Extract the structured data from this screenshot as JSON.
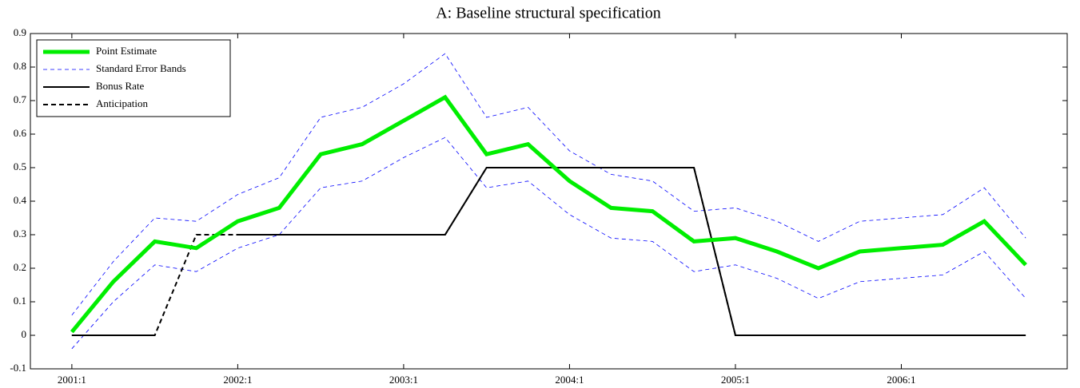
{
  "chart_data": {
    "type": "line",
    "title": "A: Baseline structural specification",
    "x": [
      1,
      2,
      3,
      4,
      5,
      6,
      7,
      8,
      9,
      10,
      11,
      12,
      13,
      14,
      15,
      16,
      17,
      18,
      19,
      20,
      21,
      22,
      23,
      24
    ],
    "xlim": [
      0,
      25
    ],
    "xticks": [
      {
        "value": 1,
        "label": "2001:1"
      },
      {
        "value": 5,
        "label": "2002:1"
      },
      {
        "value": 9,
        "label": "2003:1"
      },
      {
        "value": 13,
        "label": "2004:1"
      },
      {
        "value": 17,
        "label": "2005:1"
      },
      {
        "value": 21,
        "label": "2006:1"
      }
    ],
    "ylim": [
      -0.1,
      0.9
    ],
    "yticks": [
      -0.1,
      0,
      0.1,
      0.2,
      0.3,
      0.4,
      0.5,
      0.6,
      0.7,
      0.8,
      0.9
    ],
    "legend": "upper left",
    "series": [
      {
        "name": "Point Estimate",
        "color": "#00ee00",
        "style": "solid",
        "width": 5,
        "values": [
          0.01,
          0.16,
          0.28,
          0.26,
          0.34,
          0.38,
          0.54,
          0.57,
          0.64,
          0.71,
          0.54,
          0.57,
          0.46,
          0.38,
          0.37,
          0.28,
          0.29,
          0.25,
          0.2,
          0.25,
          0.26,
          0.27,
          0.34,
          0.21
        ]
      },
      {
        "name": "Standard Error Bands",
        "color": "#0000ff",
        "style": "dashed",
        "width": 0.8,
        "upper": [
          0.06,
          0.22,
          0.35,
          0.34,
          0.42,
          0.47,
          0.65,
          0.68,
          0.75,
          0.84,
          0.65,
          0.68,
          0.55,
          0.48,
          0.46,
          0.37,
          0.38,
          0.34,
          0.28,
          0.34,
          0.35,
          0.36,
          0.44,
          0.29
        ],
        "lower": [
          -0.04,
          0.1,
          0.21,
          0.19,
          0.26,
          0.3,
          0.44,
          0.46,
          0.53,
          0.59,
          0.44,
          0.46,
          0.36,
          0.29,
          0.28,
          0.19,
          0.21,
          0.17,
          0.11,
          0.16,
          0.17,
          0.18,
          0.25,
          0.11
        ]
      },
      {
        "name": "Bonus Rate",
        "color": "#000000",
        "style": "solid",
        "width": 2,
        "values": [
          0,
          0,
          0,
          null,
          0.3,
          0.3,
          0.3,
          0.3,
          0.3,
          0.3,
          0.5,
          0.5,
          0.5,
          0.5,
          0.5,
          0.5,
          0,
          0,
          0,
          0,
          0,
          0,
          0,
          0
        ]
      },
      {
        "name": "Anticipation",
        "color": "#000000",
        "style": "dashed",
        "width": 2,
        "values": [
          0,
          0,
          0,
          0.3,
          0.3,
          0.3,
          0.3,
          0.3,
          0.3,
          0.3,
          0.5,
          0.5,
          0.5,
          0.5,
          0.5,
          0.5,
          0,
          0,
          0,
          0,
          0,
          0,
          0,
          0
        ]
      }
    ]
  }
}
